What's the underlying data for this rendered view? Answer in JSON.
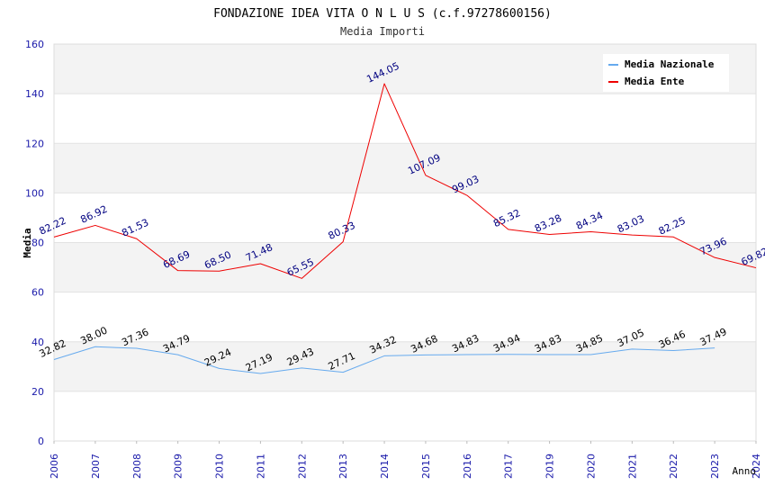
{
  "chart_data": {
    "type": "line",
    "title": "FONDAZIONE IDEA VITA O N L U S (c.f.97278600156)",
    "subtitle": "Media Importi",
    "xlabel": "Anno",
    "ylabel": "Media",
    "ylim": [
      0,
      160
    ],
    "yticks": [
      "0",
      "20",
      "40",
      "60",
      "80",
      "100",
      "120",
      "140",
      "160"
    ],
    "categories": [
      "2006",
      "2007",
      "2008",
      "2009",
      "2010",
      "2011",
      "2012",
      "2013",
      "2014",
      "2015",
      "2016",
      "2017",
      "2019",
      "2020",
      "2021",
      "2022",
      "2023",
      "2024"
    ],
    "legend_position": "top-right",
    "grid": true,
    "series": [
      {
        "name": "Media Nazionale",
        "color": "#66aaee",
        "label_color": "#000000",
        "values": [
          32.82,
          38.0,
          37.36,
          34.79,
          29.24,
          27.19,
          29.43,
          27.71,
          34.32,
          34.68,
          34.83,
          34.94,
          34.83,
          34.85,
          37.05,
          36.46,
          37.49,
          null
        ],
        "labels": [
          "32.82",
          "38.00",
          "37.36",
          "34.79",
          "29.24",
          "27.19",
          "29.43",
          "27.71",
          "34.32",
          "34.68",
          "34.83",
          "34.94",
          "34.83",
          "34.85",
          "37.05",
          "36.46",
          "37.49",
          null
        ]
      },
      {
        "name": "Media Ente",
        "color": "#ee0000",
        "label_color": "#000080",
        "values": [
          82.22,
          86.92,
          81.53,
          68.69,
          68.5,
          71.48,
          65.55,
          80.33,
          144.05,
          107.09,
          99.03,
          85.32,
          83.28,
          84.34,
          83.03,
          82.25,
          73.96,
          69.82
        ],
        "labels": [
          "82.22",
          "86.92",
          "81.53",
          "68.69",
          "68.50",
          "71.48",
          "65.55",
          "80.33",
          "144.05",
          "107.09",
          "99.03",
          "85.32",
          "83.28",
          "84.34",
          "83.03",
          "82.25",
          "73.96",
          "69.82"
        ]
      }
    ]
  }
}
